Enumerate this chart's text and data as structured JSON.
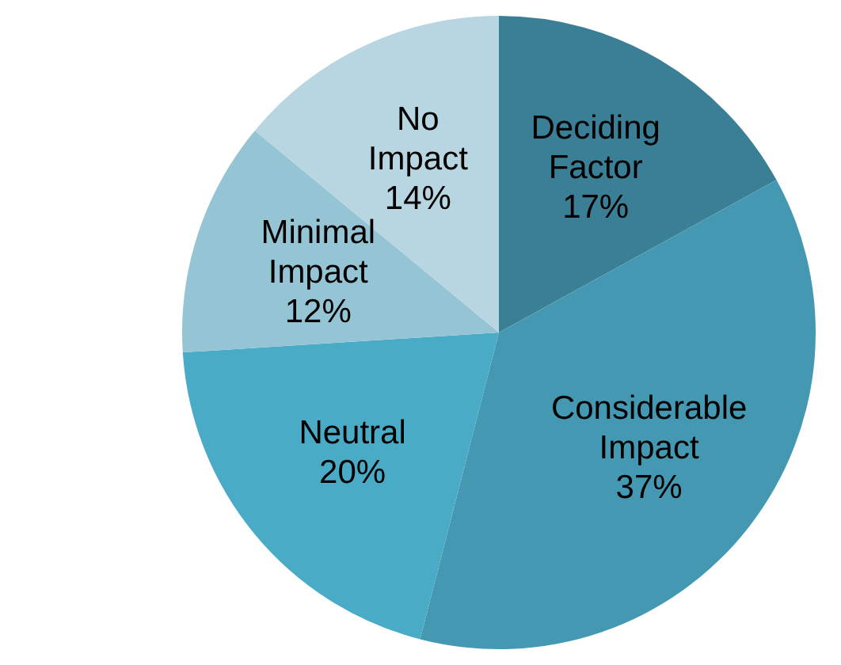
{
  "chart_data": {
    "type": "pie",
    "categories": [
      "Deciding Factor",
      "Considerable Impact",
      "Neutral",
      "Minimal Impact",
      "No Impact"
    ],
    "values": [
      17,
      37,
      20,
      12,
      14
    ],
    "value_labels": [
      "17%",
      "37%",
      "20%",
      "12%",
      "14%"
    ],
    "colors": [
      "#3a7f96",
      "#4498b2",
      "#4aabc6",
      "#95c4d5",
      "#b8d6e2"
    ]
  }
}
